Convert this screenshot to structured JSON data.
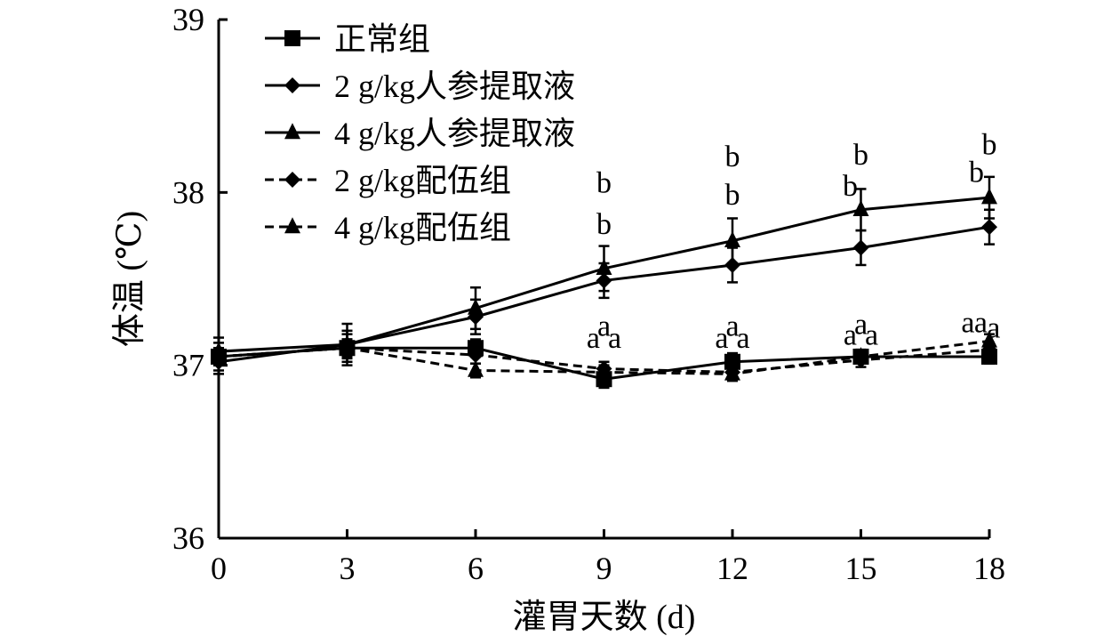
{
  "chart_data": {
    "type": "line",
    "xlabel": "灌胃天数 (d)",
    "ylabel": "体温 (℃)",
    "x": [
      0,
      3,
      6,
      9,
      12,
      15,
      18
    ],
    "xticks": [
      "0",
      "3",
      "6",
      "9",
      "12",
      "15",
      "18"
    ],
    "yticks": [
      "36",
      "37",
      "38",
      "39"
    ],
    "xlim": [
      0,
      18
    ],
    "ylim": [
      36,
      39
    ],
    "grid": false,
    "legend_position": "top-left",
    "series": [
      {
        "name": "正常组",
        "marker": "square",
        "dash": false,
        "values": [
          37.05,
          37.1,
          37.1,
          36.92,
          37.02,
          37.05,
          37.05
        ],
        "errors": [
          0.08,
          0.08,
          0.05,
          0.05,
          0.05,
          0.04,
          0.04
        ]
      },
      {
        "name": "2 g/kg人参提取液",
        "marker": "diamond",
        "dash": false,
        "values": [
          37.02,
          37.12,
          37.28,
          37.49,
          37.58,
          37.68,
          37.8
        ],
        "errors": [
          0.07,
          0.08,
          0.1,
          0.1,
          0.1,
          0.1,
          0.1
        ]
      },
      {
        "name": "4 g/kg人参提取液",
        "marker": "triangle",
        "dash": false,
        "values": [
          37.08,
          37.12,
          37.33,
          37.56,
          37.72,
          37.9,
          37.97
        ],
        "errors": [
          0.08,
          0.12,
          0.12,
          0.13,
          0.13,
          0.12,
          0.12
        ]
      },
      {
        "name": "2 g/kg配伍组",
        "marker": "diamond",
        "dash": true,
        "values": [
          37.05,
          37.1,
          37.06,
          36.98,
          36.96,
          37.03,
          37.09
        ],
        "errors": [
          0.05,
          0.05,
          0.05,
          0.04,
          0.04,
          0.04,
          0.04
        ]
      },
      {
        "name": "4 g/kg配伍组",
        "marker": "triangle",
        "dash": true,
        "values": [
          37.05,
          37.1,
          36.97,
          36.96,
          36.95,
          37.05,
          37.14
        ],
        "errors": [
          0.05,
          0.05,
          0.04,
          0.04,
          0.04,
          0.04,
          0.04
        ]
      }
    ],
    "annotations": [
      {
        "text": "b",
        "x": 9,
        "y": 38.0
      },
      {
        "text": "b",
        "x": 9,
        "y": 37.76
      },
      {
        "text": "a",
        "x": 8.75,
        "y": 37.1
      },
      {
        "text": "a",
        "x": 9,
        "y": 37.17
      },
      {
        "text": "a",
        "x": 9.25,
        "y": 37.1
      },
      {
        "text": "b",
        "x": 12,
        "y": 38.15
      },
      {
        "text": "b",
        "x": 12,
        "y": 37.93
      },
      {
        "text": "a",
        "x": 11.75,
        "y": 37.1
      },
      {
        "text": "a",
        "x": 12,
        "y": 37.17
      },
      {
        "text": "a",
        "x": 12.25,
        "y": 37.1
      },
      {
        "text": "b",
        "x": 15,
        "y": 38.16
      },
      {
        "text": "b",
        "x": 14.75,
        "y": 37.98
      },
      {
        "text": "a",
        "x": 14.75,
        "y": 37.12
      },
      {
        "text": "a",
        "x": 15,
        "y": 37.18
      },
      {
        "text": "a",
        "x": 15.25,
        "y": 37.12
      },
      {
        "text": "b",
        "x": 18,
        "y": 38.22
      },
      {
        "text": "b",
        "x": 17.7,
        "y": 38.06
      },
      {
        "text": "a",
        "x": 17.5,
        "y": 37.19
      },
      {
        "text": "a",
        "x": 17.8,
        "y": 37.19
      },
      {
        "text": "a",
        "x": 18.1,
        "y": 37.16
      }
    ]
  }
}
